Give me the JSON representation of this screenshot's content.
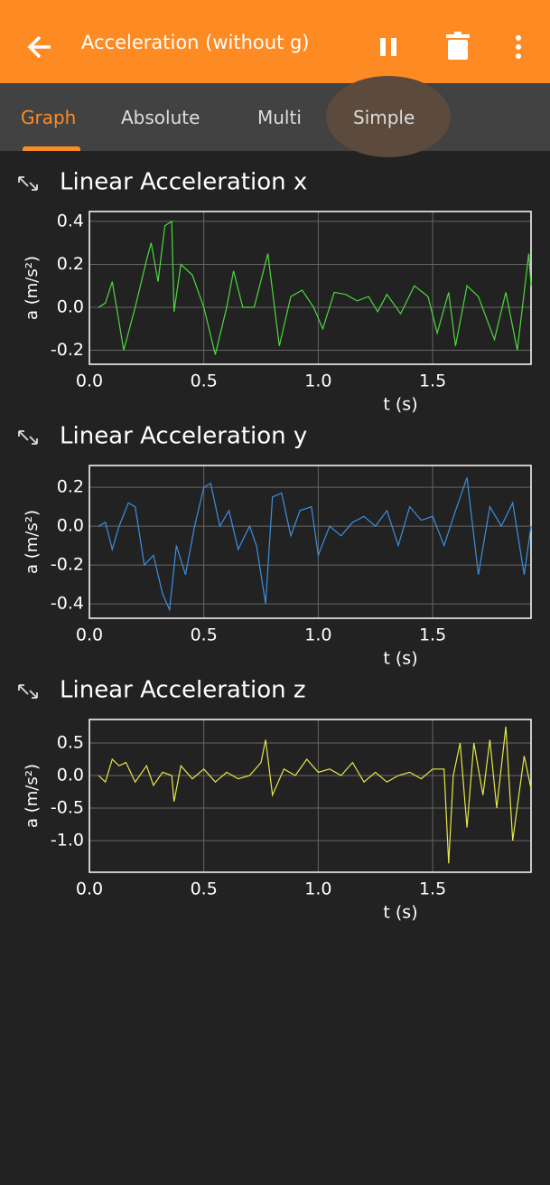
{
  "header": {
    "title": "Acceleration (without g)"
  },
  "tabs": [
    "Graph",
    "Absolute",
    "Multi",
    "Simple"
  ],
  "chart_data": [
    {
      "type": "line",
      "title": "Linear Acceleration x",
      "xlabel": "t (s)",
      "ylabel": "a (m/s²)",
      "color": "#4cd93c",
      "grid": true,
      "xlim": [
        0,
        1.93
      ],
      "xticks": [
        {
          "value": 0,
          "label": "0.0"
        },
        0.5,
        {
          "value": 1,
          "label": "1.0"
        },
        1.5
      ],
      "ylim": [
        -0.265,
        0.446
      ],
      "yticks": [
        0.4,
        0.2,
        {
          "value": 0,
          "label": "0.0"
        },
        -0.2
      ],
      "x": [
        0.04,
        0.07,
        0.1,
        0.15,
        0.2,
        0.25,
        0.27,
        0.3,
        0.33,
        0.36,
        0.37,
        0.4,
        0.45,
        0.5,
        0.55,
        0.6,
        0.63,
        0.67,
        0.72,
        0.78,
        0.83,
        0.88,
        0.93,
        0.98,
        1.02,
        1.07,
        1.12,
        1.17,
        1.22,
        1.26,
        1.3,
        1.36,
        1.42,
        1.48,
        1.52,
        1.57,
        1.6,
        1.65,
        1.7,
        1.77,
        1.82,
        1.87,
        1.92,
        1.93
      ],
      "values": [
        0.0,
        0.02,
        0.12,
        -0.2,
        0.0,
        0.22,
        0.3,
        0.12,
        0.38,
        0.4,
        -0.02,
        0.2,
        0.15,
        0.0,
        -0.22,
        0.0,
        0.17,
        0.0,
        0.0,
        0.25,
        -0.18,
        0.05,
        0.08,
        0.0,
        -0.1,
        0.07,
        0.06,
        0.03,
        0.05,
        -0.02,
        0.06,
        -0.03,
        0.1,
        0.05,
        -0.12,
        0.07,
        -0.18,
        0.1,
        0.05,
        -0.15,
        0.07,
        -0.2,
        0.25,
        0.1
      ]
    },
    {
      "type": "line",
      "title": "Linear Acceleration y",
      "xlabel": "t (s)",
      "ylabel": "a (m/s²)",
      "color": "#3d8fe0",
      "grid": true,
      "xlim": [
        0,
        1.93
      ],
      "xticks": [
        {
          "value": 0,
          "label": "0.0"
        },
        0.5,
        {
          "value": 1,
          "label": "1.0"
        },
        1.5
      ],
      "ylim": [
        -0.474,
        0.312
      ],
      "yticks": [
        0.2,
        {
          "value": 0,
          "label": "0.0"
        },
        -0.2,
        -0.4
      ],
      "x": [
        0.04,
        0.07,
        0.1,
        0.13,
        0.17,
        0.2,
        0.24,
        0.28,
        0.32,
        0.35,
        0.38,
        0.42,
        0.46,
        0.5,
        0.53,
        0.57,
        0.61,
        0.65,
        0.7,
        0.73,
        0.77,
        0.8,
        0.84,
        0.88,
        0.92,
        0.97,
        1.0,
        1.05,
        1.1,
        1.15,
        1.2,
        1.25,
        1.3,
        1.35,
        1.4,
        1.45,
        1.5,
        1.55,
        1.6,
        1.65,
        1.7,
        1.75,
        1.8,
        1.85,
        1.9,
        1.93
      ],
      "values": [
        0.0,
        0.02,
        -0.12,
        0.0,
        0.12,
        0.1,
        -0.2,
        -0.15,
        -0.35,
        -0.43,
        -0.1,
        -0.25,
        0.0,
        0.2,
        0.22,
        0.0,
        0.08,
        -0.12,
        0.0,
        -0.1,
        -0.4,
        0.15,
        0.17,
        -0.05,
        0.08,
        0.1,
        -0.15,
        0.0,
        -0.05,
        0.02,
        0.05,
        0.0,
        0.08,
        -0.1,
        0.1,
        0.03,
        0.05,
        -0.1,
        0.08,
        0.25,
        -0.25,
        0.1,
        0.0,
        0.12,
        -0.25,
        0.0
      ]
    },
    {
      "type": "line",
      "title": "Linear Acceleration z",
      "xlabel": "t (s)",
      "ylabel": "a (m/s²)",
      "color": "#e6e64a",
      "grid": true,
      "xlim": [
        0,
        1.93
      ],
      "xticks": [
        {
          "value": 0,
          "label": "0.0"
        },
        0.5,
        {
          "value": 1,
          "label": "1.0"
        },
        1.5
      ],
      "ylim": [
        -1.486,
        0.861
      ],
      "yticks": [
        0.5,
        {
          "value": 0,
          "label": "0.0"
        },
        -0.5,
        {
          "value": -1,
          "label": "-1.0"
        }
      ],
      "x": [
        0.04,
        0.07,
        0.1,
        0.13,
        0.16,
        0.2,
        0.25,
        0.28,
        0.32,
        0.36,
        0.37,
        0.4,
        0.45,
        0.5,
        0.55,
        0.6,
        0.65,
        0.7,
        0.75,
        0.77,
        0.8,
        0.85,
        0.9,
        0.95,
        1.0,
        1.05,
        1.1,
        1.15,
        1.2,
        1.25,
        1.3,
        1.35,
        1.4,
        1.45,
        1.5,
        1.55,
        1.57,
        1.59,
        1.62,
        1.65,
        1.68,
        1.72,
        1.75,
        1.78,
        1.82,
        1.85,
        1.9,
        1.93
      ],
      "values": [
        0.0,
        -0.1,
        0.25,
        0.15,
        0.2,
        -0.1,
        0.15,
        -0.15,
        0.05,
        0.0,
        -0.4,
        0.15,
        -0.05,
        0.1,
        -0.1,
        0.05,
        -0.05,
        0.0,
        0.2,
        0.55,
        -0.3,
        0.1,
        0.0,
        0.25,
        0.05,
        0.1,
        0.0,
        0.2,
        -0.1,
        0.05,
        -0.1,
        0.0,
        0.05,
        -0.05,
        0.1,
        0.1,
        -1.35,
        0.0,
        0.5,
        -0.8,
        0.5,
        -0.3,
        0.55,
        -0.5,
        0.75,
        -1.0,
        0.3,
        -0.2
      ]
    }
  ]
}
